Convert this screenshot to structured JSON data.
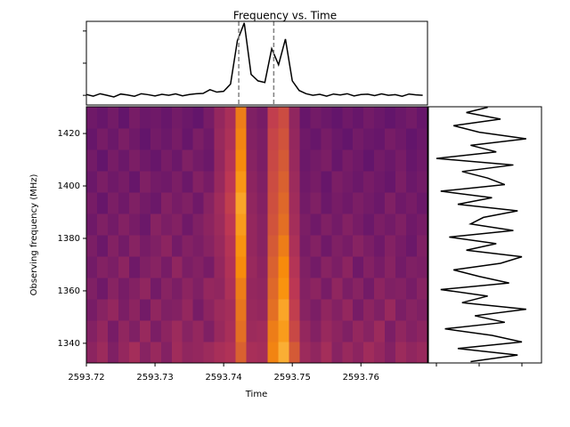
{
  "chart_data": [
    {
      "type": "heatmap",
      "title": "Frequency vs. Time",
      "xlabel": "Time",
      "ylabel": "Observing frequency (MHz)",
      "colormap": "inferno",
      "xlim": [
        2593.72,
        2593.7697
      ],
      "xticks": [
        2593.72,
        2593.73,
        2593.74,
        2593.75,
        2593.76
      ],
      "ylim": [
        1332.5,
        1430.2
      ],
      "yticks": [
        1340,
        1360,
        1380,
        1400,
        1420
      ],
      "values": [
        [
          0.38,
          0.42,
          0.35,
          0.4,
          0.44,
          0.37,
          0.41,
          0.36,
          0.43,
          0.39,
          0.4,
          0.42,
          0.45,
          0.47,
          0.62,
          0.45,
          0.44,
          0.72,
          0.82,
          0.6,
          0.42,
          0.39,
          0.44,
          0.37,
          0.41,
          0.38,
          0.43,
          0.4,
          0.36,
          0.42,
          0.39,
          0.41
        ],
        [
          0.36,
          0.4,
          0.33,
          0.39,
          0.35,
          0.41,
          0.34,
          0.38,
          0.42,
          0.37,
          0.4,
          0.35,
          0.41,
          0.45,
          0.66,
          0.42,
          0.43,
          0.7,
          0.78,
          0.55,
          0.4,
          0.36,
          0.41,
          0.38,
          0.35,
          0.4,
          0.37,
          0.42,
          0.34,
          0.39,
          0.36,
          0.38
        ],
        [
          0.33,
          0.37,
          0.4,
          0.34,
          0.38,
          0.32,
          0.39,
          0.35,
          0.36,
          0.4,
          0.33,
          0.38,
          0.42,
          0.44,
          0.68,
          0.41,
          0.4,
          0.66,
          0.8,
          0.52,
          0.37,
          0.34,
          0.39,
          0.36,
          0.4,
          0.33,
          0.38,
          0.35,
          0.41,
          0.34,
          0.37,
          0.35
        ],
        [
          0.35,
          0.31,
          0.37,
          0.33,
          0.36,
          0.39,
          0.32,
          0.37,
          0.34,
          0.38,
          0.35,
          0.4,
          0.39,
          0.46,
          0.7,
          0.4,
          0.39,
          0.64,
          0.76,
          0.5,
          0.36,
          0.38,
          0.33,
          0.39,
          0.34,
          0.37,
          0.32,
          0.38,
          0.35,
          0.36,
          0.33,
          0.37
        ],
        [
          0.32,
          0.36,
          0.34,
          0.38,
          0.31,
          0.35,
          0.37,
          0.33,
          0.39,
          0.34,
          0.36,
          0.33,
          0.4,
          0.47,
          0.74,
          0.41,
          0.38,
          0.62,
          0.74,
          0.48,
          0.35,
          0.32,
          0.37,
          0.34,
          0.38,
          0.31,
          0.36,
          0.33,
          0.37,
          0.32,
          0.35,
          0.34
        ],
        [
          0.34,
          0.3,
          0.36,
          0.32,
          0.37,
          0.33,
          0.35,
          0.38,
          0.32,
          0.36,
          0.34,
          0.37,
          0.41,
          0.48,
          0.76,
          0.4,
          0.37,
          0.6,
          0.7,
          0.46,
          0.33,
          0.36,
          0.31,
          0.35,
          0.33,
          0.37,
          0.34,
          0.31,
          0.36,
          0.33,
          0.3,
          0.35
        ],
        [
          0.31,
          0.35,
          0.32,
          0.36,
          0.33,
          0.3,
          0.37,
          0.34,
          0.36,
          0.31,
          0.35,
          0.38,
          0.42,
          0.5,
          0.78,
          0.4,
          0.37,
          0.58,
          0.66,
          0.44,
          0.34,
          0.31,
          0.35,
          0.32,
          0.36,
          0.33,
          0.3,
          0.34,
          0.32,
          0.35,
          0.31,
          0.33
        ],
        [
          0.33,
          0.29,
          0.34,
          0.31,
          0.35,
          0.32,
          0.3,
          0.36,
          0.33,
          0.35,
          0.31,
          0.37,
          0.43,
          0.52,
          0.8,
          0.39,
          0.36,
          0.57,
          0.64,
          0.43,
          0.32,
          0.35,
          0.3,
          0.33,
          0.31,
          0.34,
          0.32,
          0.3,
          0.35,
          0.31,
          0.33,
          0.3
        ],
        [
          0.3,
          0.34,
          0.31,
          0.33,
          0.29,
          0.35,
          0.32,
          0.31,
          0.34,
          0.3,
          0.36,
          0.33,
          0.41,
          0.5,
          0.77,
          0.38,
          0.35,
          0.56,
          0.62,
          0.42,
          0.31,
          0.33,
          0.29,
          0.34,
          0.32,
          0.3,
          0.33,
          0.31,
          0.29,
          0.34,
          0.3,
          0.32
        ],
        [
          0.32,
          0.28,
          0.33,
          0.3,
          0.34,
          0.31,
          0.29,
          0.33,
          0.3,
          0.35,
          0.32,
          0.3,
          0.4,
          0.48,
          0.74,
          0.37,
          0.34,
          0.55,
          0.6,
          0.41,
          0.3,
          0.32,
          0.34,
          0.29,
          0.33,
          0.31,
          0.28,
          0.32,
          0.3,
          0.33,
          0.29,
          0.31
        ],
        [
          0.29,
          0.33,
          0.3,
          0.34,
          0.31,
          0.28,
          0.32,
          0.3,
          0.33,
          0.29,
          0.34,
          0.31,
          0.41,
          0.46,
          0.72,
          0.36,
          0.34,
          0.54,
          0.58,
          0.4,
          0.31,
          0.29,
          0.33,
          0.3,
          0.28,
          0.32,
          0.3,
          0.29,
          0.33,
          0.31,
          0.28,
          0.3
        ],
        [
          0.31,
          0.29,
          0.32,
          0.28,
          0.33,
          0.3,
          0.31,
          0.29,
          0.32,
          0.3,
          0.28,
          0.33,
          0.4,
          0.45,
          0.7,
          0.35,
          0.33,
          0.52,
          0.56,
          0.39,
          0.29,
          0.32,
          0.3,
          0.28,
          0.31,
          0.29,
          0.32,
          0.3,
          0.28,
          0.3,
          0.32,
          0.29
        ]
      ]
    },
    {
      "type": "line",
      "orientation": "horizontal",
      "color": "#000000",
      "tick_labels": false,
      "xlim": [
        2593.72,
        2593.7697
      ],
      "ylim": [
        -0.6,
        4.6
      ],
      "yticks": [
        0,
        2,
        4
      ],
      "vlines": [
        2593.7422,
        2593.7473
      ],
      "vline_color": "#808080",
      "x": [
        2593.72,
        2593.721,
        2593.722,
        2593.723,
        2593.724,
        2593.725,
        2593.726,
        2593.727,
        2593.728,
        2593.729,
        2593.73,
        2593.731,
        2593.732,
        2593.733,
        2593.734,
        2593.735,
        2593.736,
        2593.737,
        2593.738,
        2593.739,
        2593.74,
        2593.741,
        2593.742,
        2593.743,
        2593.744,
        2593.745,
        2593.746,
        2593.747,
        2593.748,
        2593.749,
        2593.75,
        2593.751,
        2593.752,
        2593.753,
        2593.754,
        2593.755,
        2593.756,
        2593.757,
        2593.758,
        2593.759,
        2593.76,
        2593.761,
        2593.762,
        2593.763,
        2593.764,
        2593.765,
        2593.766,
        2593.767,
        2593.768,
        2593.769
      ],
      "values": [
        0.05,
        -0.05,
        0.1,
        0.0,
        -0.1,
        0.08,
        0.02,
        -0.06,
        0.1,
        0.04,
        -0.04,
        0.06,
        0.0,
        0.09,
        -0.03,
        0.05,
        0.1,
        0.12,
        0.35,
        0.2,
        0.25,
        0.7,
        3.4,
        4.5,
        1.3,
        0.9,
        0.8,
        2.9,
        1.9,
        3.5,
        0.9,
        0.3,
        0.1,
        0.0,
        0.06,
        -0.05,
        0.08,
        0.02,
        0.1,
        -0.04,
        0.05,
        0.07,
        -0.02,
        0.09,
        0.0,
        0.04,
        -0.06,
        0.08,
        0.03,
        0.0
      ]
    },
    {
      "type": "line",
      "orientation": "vertical",
      "color": "#000000",
      "tick_labels": false,
      "xlim": [
        -1.1875,
        1.458
      ],
      "xticks": [
        -1,
        0,
        1
      ],
      "ylim": [
        1332.5,
        1430.2
      ],
      "y": [
        1333,
        1335.5,
        1338,
        1340.5,
        1343,
        1345.5,
        1348,
        1350.5,
        1353,
        1355.5,
        1358,
        1360.5,
        1363,
        1365.5,
        1368,
        1370.5,
        1373,
        1375.5,
        1378,
        1380.5,
        1383,
        1385.5,
        1388,
        1390.5,
        1393,
        1395.5,
        1398,
        1400.5,
        1403,
        1405.5,
        1408,
        1410.5,
        1413,
        1415.5,
        1418,
        1420.5,
        1423,
        1425.5,
        1428,
        1430
      ],
      "values": [
        -0.2,
        0.9,
        -0.5,
        1.0,
        0.3,
        -0.8,
        0.6,
        -0.1,
        1.1,
        -0.4,
        0.2,
        -0.9,
        0.7,
        0.0,
        -0.6,
        0.5,
        1.0,
        -0.3,
        0.4,
        -0.7,
        0.8,
        -0.2,
        0.1,
        0.9,
        -0.5,
        0.3,
        -0.9,
        0.6,
        0.2,
        -0.4,
        0.8,
        -1.0,
        0.4,
        -0.2,
        1.1,
        0.0,
        -0.6,
        0.5,
        -0.3,
        0.2
      ]
    }
  ]
}
